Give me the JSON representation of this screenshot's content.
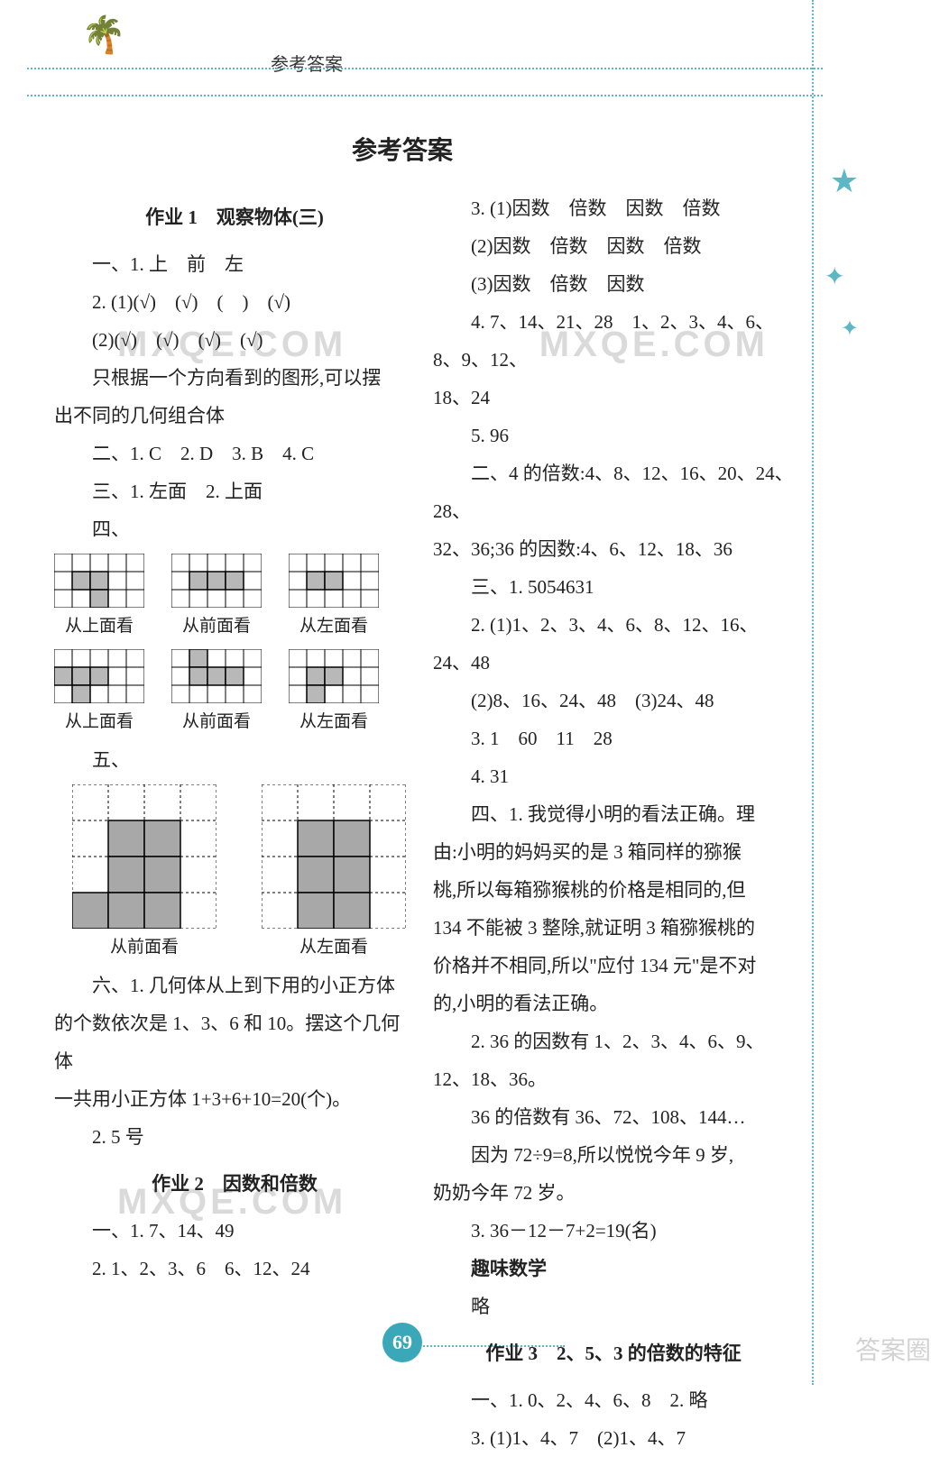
{
  "header": {
    "label": "参考答案"
  },
  "title": "参考答案",
  "page_number": "69",
  "watermark": "MXQE.COM",
  "logo_text": "答案圈",
  "decoration": {
    "palm_color": "#5bb8c4",
    "dot_color": "#5bb8c4"
  },
  "left_col": {
    "hw1_title": "作业 1　观察物体(三)",
    "l1": "一、1. 上　前　左",
    "l2": "2. (1)(√)　(√)　(　)　(√)",
    "l3": "(2)(√)　(√)　(√)　(√)",
    "l4": "只根据一个方向看到的图形,可以摆",
    "l5": "出不同的几何组合体",
    "l6": "二、1. C　2. D　3. B　4. C",
    "l7": "三、1. 左面　2. 上面",
    "l8": "四、",
    "cap_top": "从上面看",
    "cap_front": "从前面看",
    "cap_left": "从左面看",
    "l9": "五、",
    "l10": "六、1. 几何体从上到下用的小正方体",
    "l11": "的个数依次是 1、3、6 和 10。摆这个几何体",
    "l12": "一共用小正方体 1+3+6+10=20(个)。",
    "l13": "2. 5 号",
    "hw2_title": "作业 2　因数和倍数",
    "l14": "一、1. 7、14、49",
    "l15": "2. 1、2、3、6　6、12、24"
  },
  "right_col": {
    "r1": "3. (1)因数　倍数　因数　倍数",
    "r2": "(2)因数　倍数　因数　倍数",
    "r3": "(3)因数　倍数　因数",
    "r4": "4. 7、14、21、28　1、2、3、4、6、8、9、12、",
    "r4b": "18、24",
    "r5": "5. 96",
    "r6": "二、4 的倍数:4、8、12、16、20、24、28、",
    "r6b": "32、36;36 的因数:4、6、12、18、36",
    "r7": "三、1. 5054631",
    "r8": "2. (1)1、2、3、4、6、8、12、16、24、48",
    "r9": "(2)8、16、24、48　(3)24、48",
    "r10": "3. 1　60　11　28",
    "r11": "4. 31",
    "r12": "四、1. 我觉得小明的看法正确。理",
    "r13": "由:小明的妈妈买的是 3 箱同样的猕猴",
    "r14": "桃,所以每箱猕猴桃的价格是相同的,但",
    "r15": "134 不能被 3 整除,就证明 3 箱猕猴桃的",
    "r16": "价格并不相同,所以\"应付 134 元\"是不对",
    "r17": "的,小明的看法正确。",
    "r18": "2. 36 的因数有 1、2、3、4、6、9、12、18、36。",
    "r19": "36 的倍数有 36、72、108、144…",
    "r20": "因为 72÷9=8,所以悦悦今年 9 岁,",
    "r21": "奶奶今年 72 岁。",
    "r22": "3. 36－12－7+2=19(名)",
    "r23": "趣味数学",
    "r24": "略",
    "hw3_title": "作业 3　2、5、3 的倍数的特征",
    "r25": "一、1. 0、2、4、6、8　2. 略",
    "r26": "3. (1)1、4、7　(2)1、4、7"
  },
  "grids": {
    "small": {
      "cols": 5,
      "rows": 3,
      "cell": 20,
      "stroke": "#000",
      "fill": "#b8b8b8"
    },
    "row1": {
      "g1": [
        [
          1,
          1
        ],
        [
          2,
          1
        ],
        [
          2,
          2
        ]
      ],
      "g2": [
        [
          1,
          1
        ],
        [
          2,
          1
        ],
        [
          3,
          1
        ]
      ],
      "g3": [
        [
          1,
          1
        ],
        [
          2,
          1
        ]
      ]
    },
    "row2": {
      "g1": [
        [
          0,
          1
        ],
        [
          1,
          1
        ],
        [
          2,
          1
        ],
        [
          1,
          2
        ]
      ],
      "g2": [
        [
          1,
          0
        ],
        [
          1,
          1
        ],
        [
          2,
          1
        ],
        [
          3,
          1
        ]
      ],
      "g3": [
        [
          1,
          1
        ],
        [
          2,
          1
        ],
        [
          1,
          2
        ]
      ]
    },
    "big": {
      "cols": 4,
      "rows": 4,
      "cell": 40,
      "stroke": "#000",
      "fill": "#a8a8a8",
      "g1": [
        [
          1,
          1
        ],
        [
          2,
          1
        ],
        [
          1,
          2
        ],
        [
          2,
          2
        ],
        [
          0,
          3
        ],
        [
          1,
          3
        ],
        [
          2,
          3
        ]
      ],
      "g2": [
        [
          1,
          1
        ],
        [
          2,
          1
        ],
        [
          1,
          2
        ],
        [
          2,
          2
        ],
        [
          1,
          3
        ],
        [
          2,
          3
        ]
      ]
    }
  }
}
